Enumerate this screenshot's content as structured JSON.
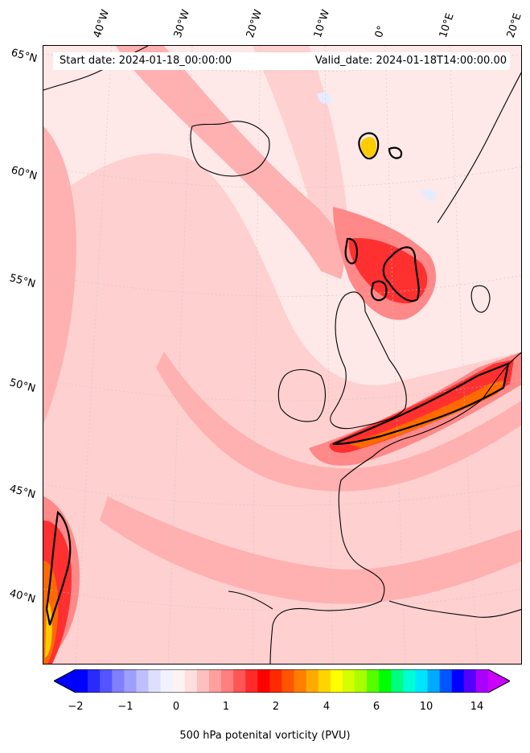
{
  "header": {
    "start_date": "Start date: 2024-01-18_00:00:00",
    "valid_date": "Valid_date: 2024-01-18T14:00:00.00"
  },
  "longitude_labels": [
    "40°W",
    "30°W",
    "20°W",
    "10°W",
    "0°",
    "10°E",
    "20°E"
  ],
  "latitude_labels": [
    "65°N",
    "60°N",
    "55°N",
    "50°N",
    "45°N",
    "40°N"
  ],
  "colorbar": {
    "label": "500 hPa potenital vorticity (PVU)",
    "ticks": [
      "−2",
      "−1",
      "0",
      "1",
      "2",
      "4",
      "6",
      "10",
      "14"
    ],
    "colors": [
      "#0000ff",
      "#2a2aff",
      "#5555ff",
      "#7f7fff",
      "#9f9fff",
      "#bfbfff",
      "#dedeff",
      "#f2f2ff",
      "#fff2f2",
      "#ffdede",
      "#ffbfbf",
      "#ff9f9f",
      "#ff7f7f",
      "#ff5555",
      "#ff2a2a",
      "#ff0000",
      "#ff2a00",
      "#ff5500",
      "#ff8000",
      "#ffaa00",
      "#ffd400",
      "#ffff00",
      "#d4ff00",
      "#aaff00",
      "#55ff00",
      "#00ff00",
      "#00ff80",
      "#00ffd4",
      "#00e5ff",
      "#00aaff",
      "#0055ff",
      "#0000ff",
      "#5500ff",
      "#aa00ff"
    ],
    "over_color": "#cc00ff",
    "under_color": "#0000ff"
  },
  "field_colors": {
    "background": "#ffe8e8",
    "light": "#ffd0d0",
    "medium": "#ffb0b0",
    "strong": "#ff8888",
    "red": "#ff3030",
    "orange": "#ff6a00",
    "yellow": "#ffcc00",
    "coast": "#000000"
  }
}
